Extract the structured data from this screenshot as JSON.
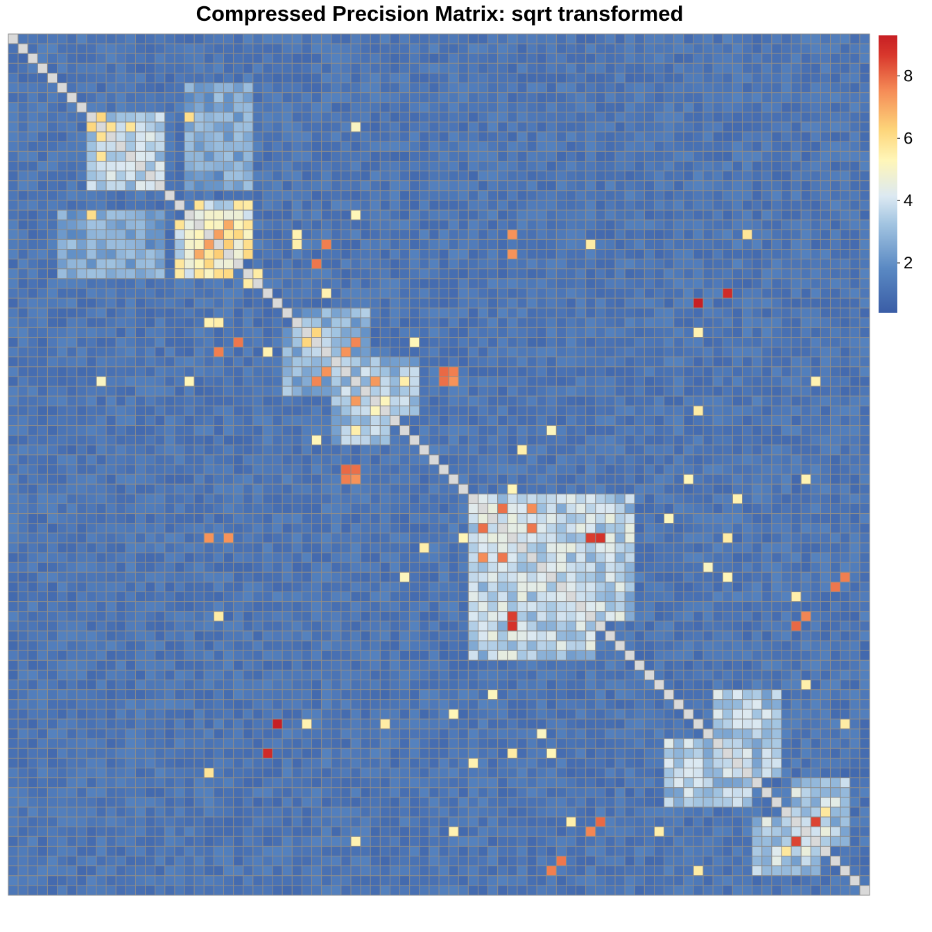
{
  "chart_data": {
    "type": "heatmap",
    "title": "Compressed Precision Matrix: sqrt transformed",
    "matrix_size": 88,
    "diagonal_value": 3.0,
    "background_value_range": [
      0.8,
      1.6
    ],
    "value_range": [
      0.4,
      9.3
    ],
    "colorbar": {
      "ticks": [
        2,
        4,
        6,
        8
      ],
      "colors": [
        "#3A5DA6",
        "#5A89C3",
        "#A2C4E1",
        "#DCE9F2",
        "#FFF6B8",
        "#FDD57A",
        "#F58C57",
        "#D8372C",
        "#C71F24"
      ]
    },
    "blocks": [
      {
        "rows": [
          8,
          15
        ],
        "cols": [
          8,
          15
        ],
        "value": 3.6
      },
      {
        "rows": [
          8,
          15
        ],
        "cols": [
          18,
          24
        ],
        "value": 2.7
      },
      {
        "rows": [
          18,
          24
        ],
        "cols": [
          5,
          13
        ],
        "value": 2.8
      },
      {
        "rows": [
          19,
          24
        ],
        "cols": [
          17,
          22
        ],
        "value": 5.2
      },
      {
        "rows": [
          30,
          36
        ],
        "cols": [
          28,
          33
        ],
        "value": 3.2
      },
      {
        "rows": [
          34,
          41
        ],
        "cols": [
          33,
          38
        ],
        "value": 3.4
      },
      {
        "rows": [
          47,
          63
        ],
        "cols": [
          47,
          59
        ],
        "value": 3.8
      },
      {
        "rows": [
          72,
          78
        ],
        "cols": [
          67,
          75
        ],
        "value": 3.6
      },
      {
        "rows": [
          80,
          85
        ],
        "cols": [
          76,
          82
        ],
        "value": 3.9
      }
    ],
    "highlighted_cells": [
      {
        "row": 8,
        "col": 9,
        "value": 6.2
      },
      {
        "row": 9,
        "col": 10,
        "value": 6.0
      },
      {
        "row": 9,
        "col": 12,
        "value": 5.8
      },
      {
        "row": 10,
        "col": 9,
        "value": 5.9
      },
      {
        "row": 11,
        "col": 11,
        "value": 6.1
      },
      {
        "row": 8,
        "col": 18,
        "value": 6.0
      },
      {
        "row": 20,
        "col": 21,
        "value": 7.2
      },
      {
        "row": 21,
        "col": 22,
        "value": 6.6
      },
      {
        "row": 22,
        "col": 19,
        "value": 7.0
      },
      {
        "row": 22,
        "col": 21,
        "value": 6.4
      },
      {
        "row": 23,
        "col": 31,
        "value": 7.8
      },
      {
        "row": 22,
        "col": 51,
        "value": 7.4
      },
      {
        "row": 27,
        "col": 70,
        "value": 9.3
      },
      {
        "row": 32,
        "col": 21,
        "value": 7.7
      },
      {
        "row": 30,
        "col": 31,
        "value": 6.2
      },
      {
        "row": 31,
        "col": 31,
        "value": 7.1
      },
      {
        "row": 32,
        "col": 34,
        "value": 7.4
      },
      {
        "row": 35,
        "col": 31,
        "value": 7.6
      },
      {
        "row": 35,
        "col": 44,
        "value": 7.9
      },
      {
        "row": 35,
        "col": 45,
        "value": 7.4
      },
      {
        "row": 36,
        "col": 36,
        "value": 7.5
      },
      {
        "row": 37,
        "col": 35,
        "value": 7.3
      },
      {
        "row": 44,
        "col": 34,
        "value": 8.0
      },
      {
        "row": 45,
        "col": 34,
        "value": 7.7
      },
      {
        "row": 48,
        "col": 50,
        "value": 7.6
      },
      {
        "row": 48,
        "col": 53,
        "value": 7.4
      },
      {
        "row": 50,
        "col": 48,
        "value": 7.9
      },
      {
        "row": 50,
        "col": 53,
        "value": 7.6
      },
      {
        "row": 51,
        "col": 20,
        "value": 7.4
      },
      {
        "row": 51,
        "col": 59,
        "value": 8.6
      },
      {
        "row": 53,
        "col": 48,
        "value": 7.5
      },
      {
        "row": 53,
        "col": 50,
        "value": 7.8
      },
      {
        "row": 56,
        "col": 84,
        "value": 7.8
      },
      {
        "row": 60,
        "col": 51,
        "value": 8.8
      },
      {
        "row": 60,
        "col": 80,
        "value": 8.0
      },
      {
        "row": 73,
        "col": 26,
        "value": 9.0
      },
      {
        "row": 81,
        "col": 59,
        "value": 7.6
      },
      {
        "row": 81,
        "col": 81,
        "value": 7.4
      },
      {
        "row": 82,
        "col": 80,
        "value": 8.5
      },
      {
        "row": 85,
        "col": 55,
        "value": 7.7
      }
    ],
    "bright_cells": [
      {
        "row": 21,
        "col": 29,
        "value": 5.5
      },
      {
        "row": 21,
        "col": 32,
        "value": 5.4
      },
      {
        "row": 20,
        "col": 29,
        "value": 5.4
      },
      {
        "row": 25,
        "col": 24,
        "value": 5.6
      },
      {
        "row": 32,
        "col": 26,
        "value": 5.4
      },
      {
        "row": 35,
        "col": 9,
        "value": 5.1
      },
      {
        "row": 35,
        "col": 18,
        "value": 5.3
      },
      {
        "row": 35,
        "col": 40,
        "value": 5.5
      },
      {
        "row": 37,
        "col": 38,
        "value": 5.2
      },
      {
        "row": 38,
        "col": 70,
        "value": 5.6
      },
      {
        "row": 41,
        "col": 31,
        "value": 5.3
      },
      {
        "row": 46,
        "col": 51,
        "value": 5.3
      },
      {
        "row": 47,
        "col": 74,
        "value": 5.4
      },
      {
        "row": 49,
        "col": 67,
        "value": 5.2
      },
      {
        "row": 52,
        "col": 42,
        "value": 5.5
      },
      {
        "row": 54,
        "col": 71,
        "value": 5.1
      },
      {
        "row": 55,
        "col": 40,
        "value": 5.2
      },
      {
        "row": 57,
        "col": 80,
        "value": 5.5
      },
      {
        "row": 59,
        "col": 21,
        "value": 5.6
      },
      {
        "row": 69,
        "col": 45,
        "value": 5.3
      },
      {
        "row": 70,
        "col": 30,
        "value": 5.4
      },
      {
        "row": 73,
        "col": 51,
        "value": 5.6
      },
      {
        "row": 73,
        "col": 55,
        "value": 5.3
      },
      {
        "row": 75,
        "col": 20,
        "value": 5.8
      },
      {
        "row": 81,
        "col": 45,
        "value": 5.4
      },
      {
        "row": 81,
        "col": 66,
        "value": 5.5
      },
      {
        "row": 82,
        "col": 35,
        "value": 5.4
      },
      {
        "row": 85,
        "col": 70,
        "value": 5.6
      },
      {
        "row": 83,
        "col": 79,
        "value": 5.7
      }
    ]
  }
}
